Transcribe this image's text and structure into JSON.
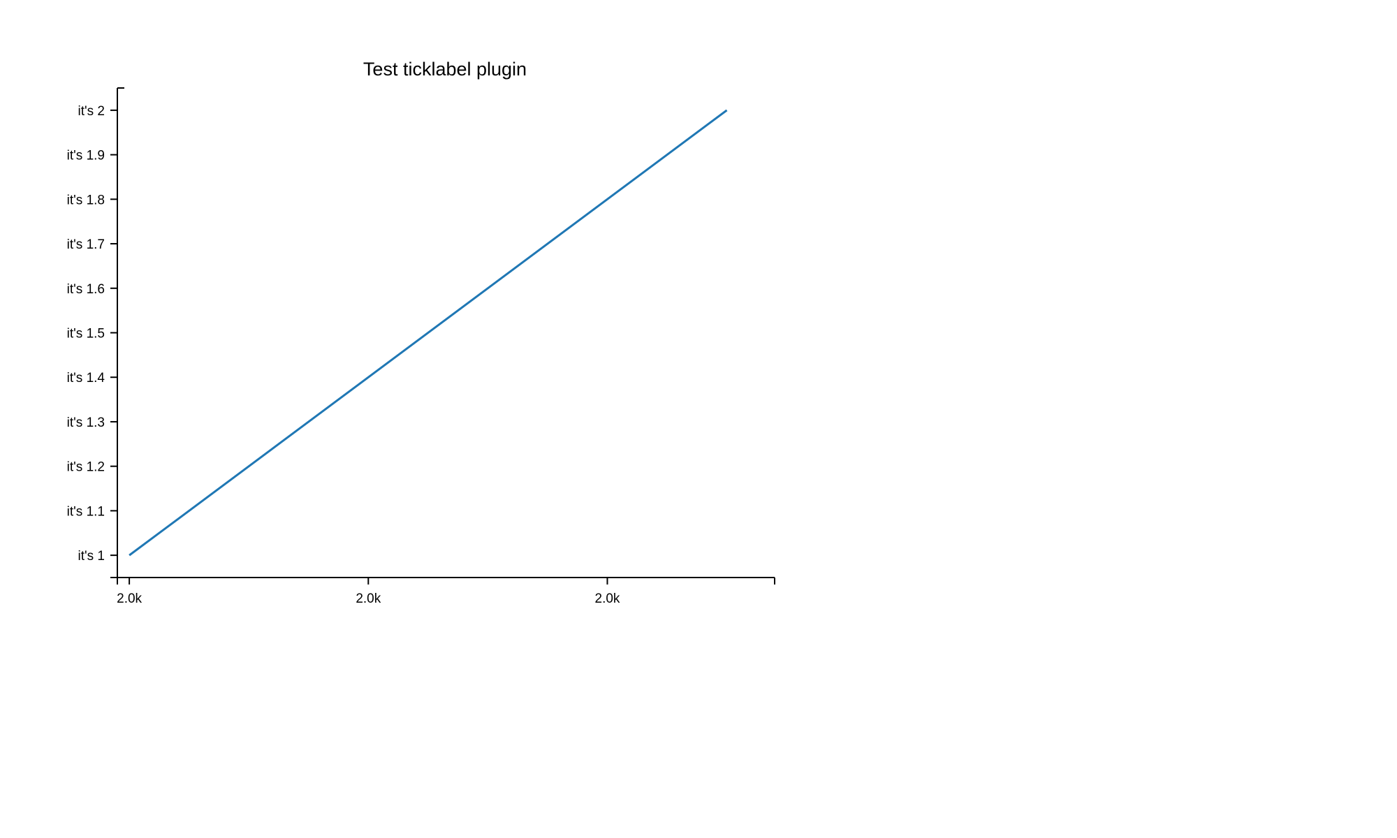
{
  "chart_data": {
    "type": "line",
    "title": "Test ticklabel plugin",
    "xlabel": "",
    "ylabel": "",
    "grid": false,
    "legend": "none",
    "xlim": [
      1999.95,
      2002.7
    ],
    "ylim": [
      0.95,
      2.05
    ],
    "x_ticks": [
      {
        "value": 2000,
        "label": "2.0k"
      },
      {
        "value": 2001,
        "label": "2.0k"
      },
      {
        "value": 2002,
        "label": "2.0k"
      }
    ],
    "y_ticks": [
      {
        "value": 1.0,
        "label": "it's 1"
      },
      {
        "value": 1.1,
        "label": "it's 1.1"
      },
      {
        "value": 1.2,
        "label": "it's 1.2"
      },
      {
        "value": 1.3,
        "label": "it's 1.3"
      },
      {
        "value": 1.4,
        "label": "it's 1.4"
      },
      {
        "value": 1.5,
        "label": "it's 1.5"
      },
      {
        "value": 1.6,
        "label": "it's 1.6"
      },
      {
        "value": 1.7,
        "label": "it's 1.7"
      },
      {
        "value": 1.8,
        "label": "it's 1.8"
      },
      {
        "value": 1.9,
        "label": "it's 1.9"
      },
      {
        "value": 2.0,
        "label": "it's 2"
      }
    ],
    "series": [
      {
        "color": "#1f77b4",
        "x": [
          2000.0,
          2002.5
        ],
        "y": [
          1.0,
          2.0
        ]
      }
    ]
  }
}
